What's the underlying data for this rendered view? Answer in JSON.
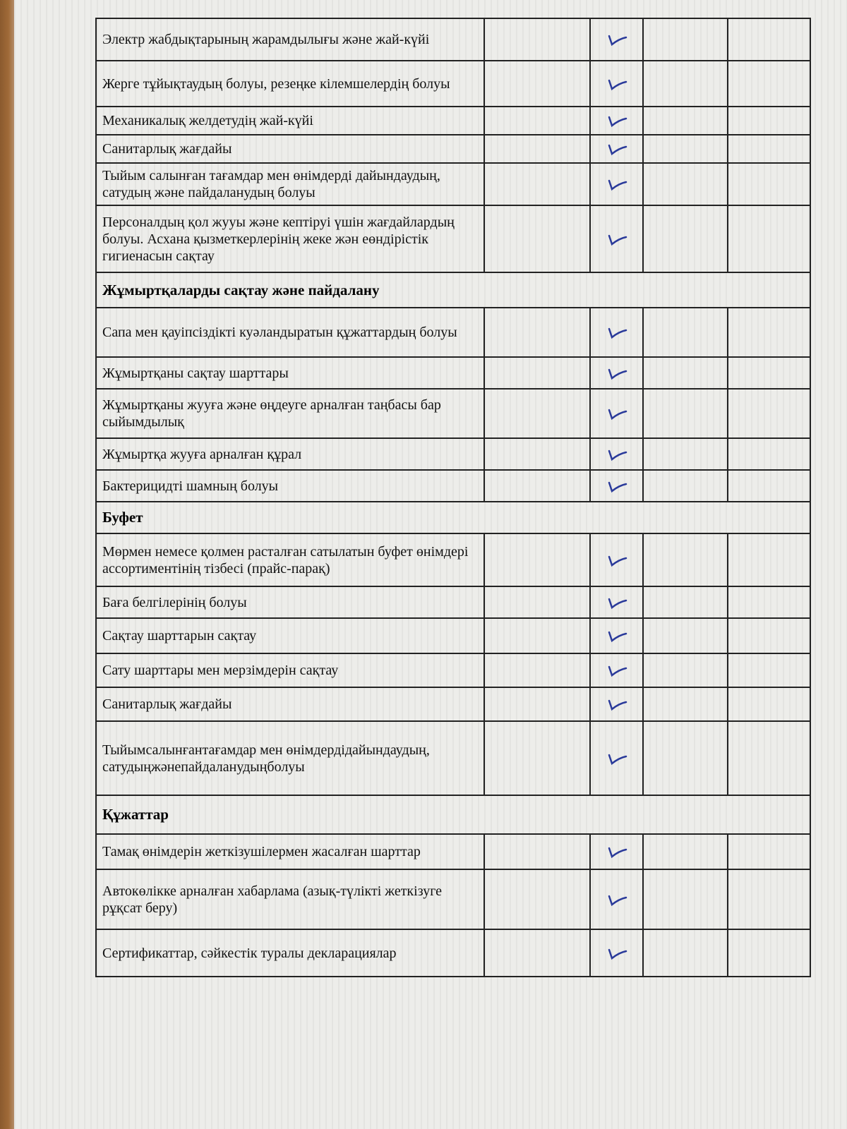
{
  "table": {
    "rows": [
      {
        "item": "Электр жабдықтарының жарамдылығы және жай-күйі"
      },
      {
        "item": "Жерге тұйықтаудың болуы, резеңке кілемшелердің болуы"
      },
      {
        "item": "Механикалық желдетудің жай-күйі"
      },
      {
        "item": "Санитарлық жағдайы"
      },
      {
        "item": "Тыйым салынған тағамдар мен өнімдерді дайындаудың, сатудың және пайдаланудың болуы"
      },
      {
        "item": "Персоналдың қол жууы және кептіруі үшін жағдайлардың болуы. Асхана қызметкерлерінің жеке жән еөндірістік гигиенасын сақтау"
      },
      {
        "section": "Жұмыртқаларды сақтау және пайдалану"
      },
      {
        "item": "Сапа мен қауіпсіздікті куәландыратын құжаттардың болуы"
      },
      {
        "item": "Жұмыртқаны сақтау шарттары"
      },
      {
        "item": "Жұмыртқаны жууға және өңдеуге арналған таңбасы бар сыйымдылық"
      },
      {
        "item": "Жұмыртқа жууға арналған құрал"
      },
      {
        "item": "Бактерицидті шамның болуы"
      },
      {
        "section": "Буфет"
      },
      {
        "item": "Мөрмен немесе қолмен расталған сатылатын буфет өнімдері ассортиментінің тізбесі (прайс-парақ)"
      },
      {
        "item": "Баға белгілерінің болуы"
      },
      {
        "item": "Сақтау шарттарын сақтау"
      },
      {
        "item": "Сату шарттары мен мерзімдерін сақтау"
      },
      {
        "item": "Санитарлық жағдайы"
      },
      {
        "item": "Тыйымсалынғантағамдар мен өнімдердідайындаудың, сатудыңжәнепайдаланудыңболуы"
      },
      {
        "section": "Құжаттар"
      },
      {
        "item": "Тамақ өнімдерін жеткізушілермен жасалған шарттар"
      },
      {
        "item": "Автокөлікке арналған хабарлама (азық-түлікті жеткізуге рұқсат беру)"
      },
      {
        "item": "Сертификаттар, сәйкестік туралы декларациялар"
      }
    ]
  }
}
